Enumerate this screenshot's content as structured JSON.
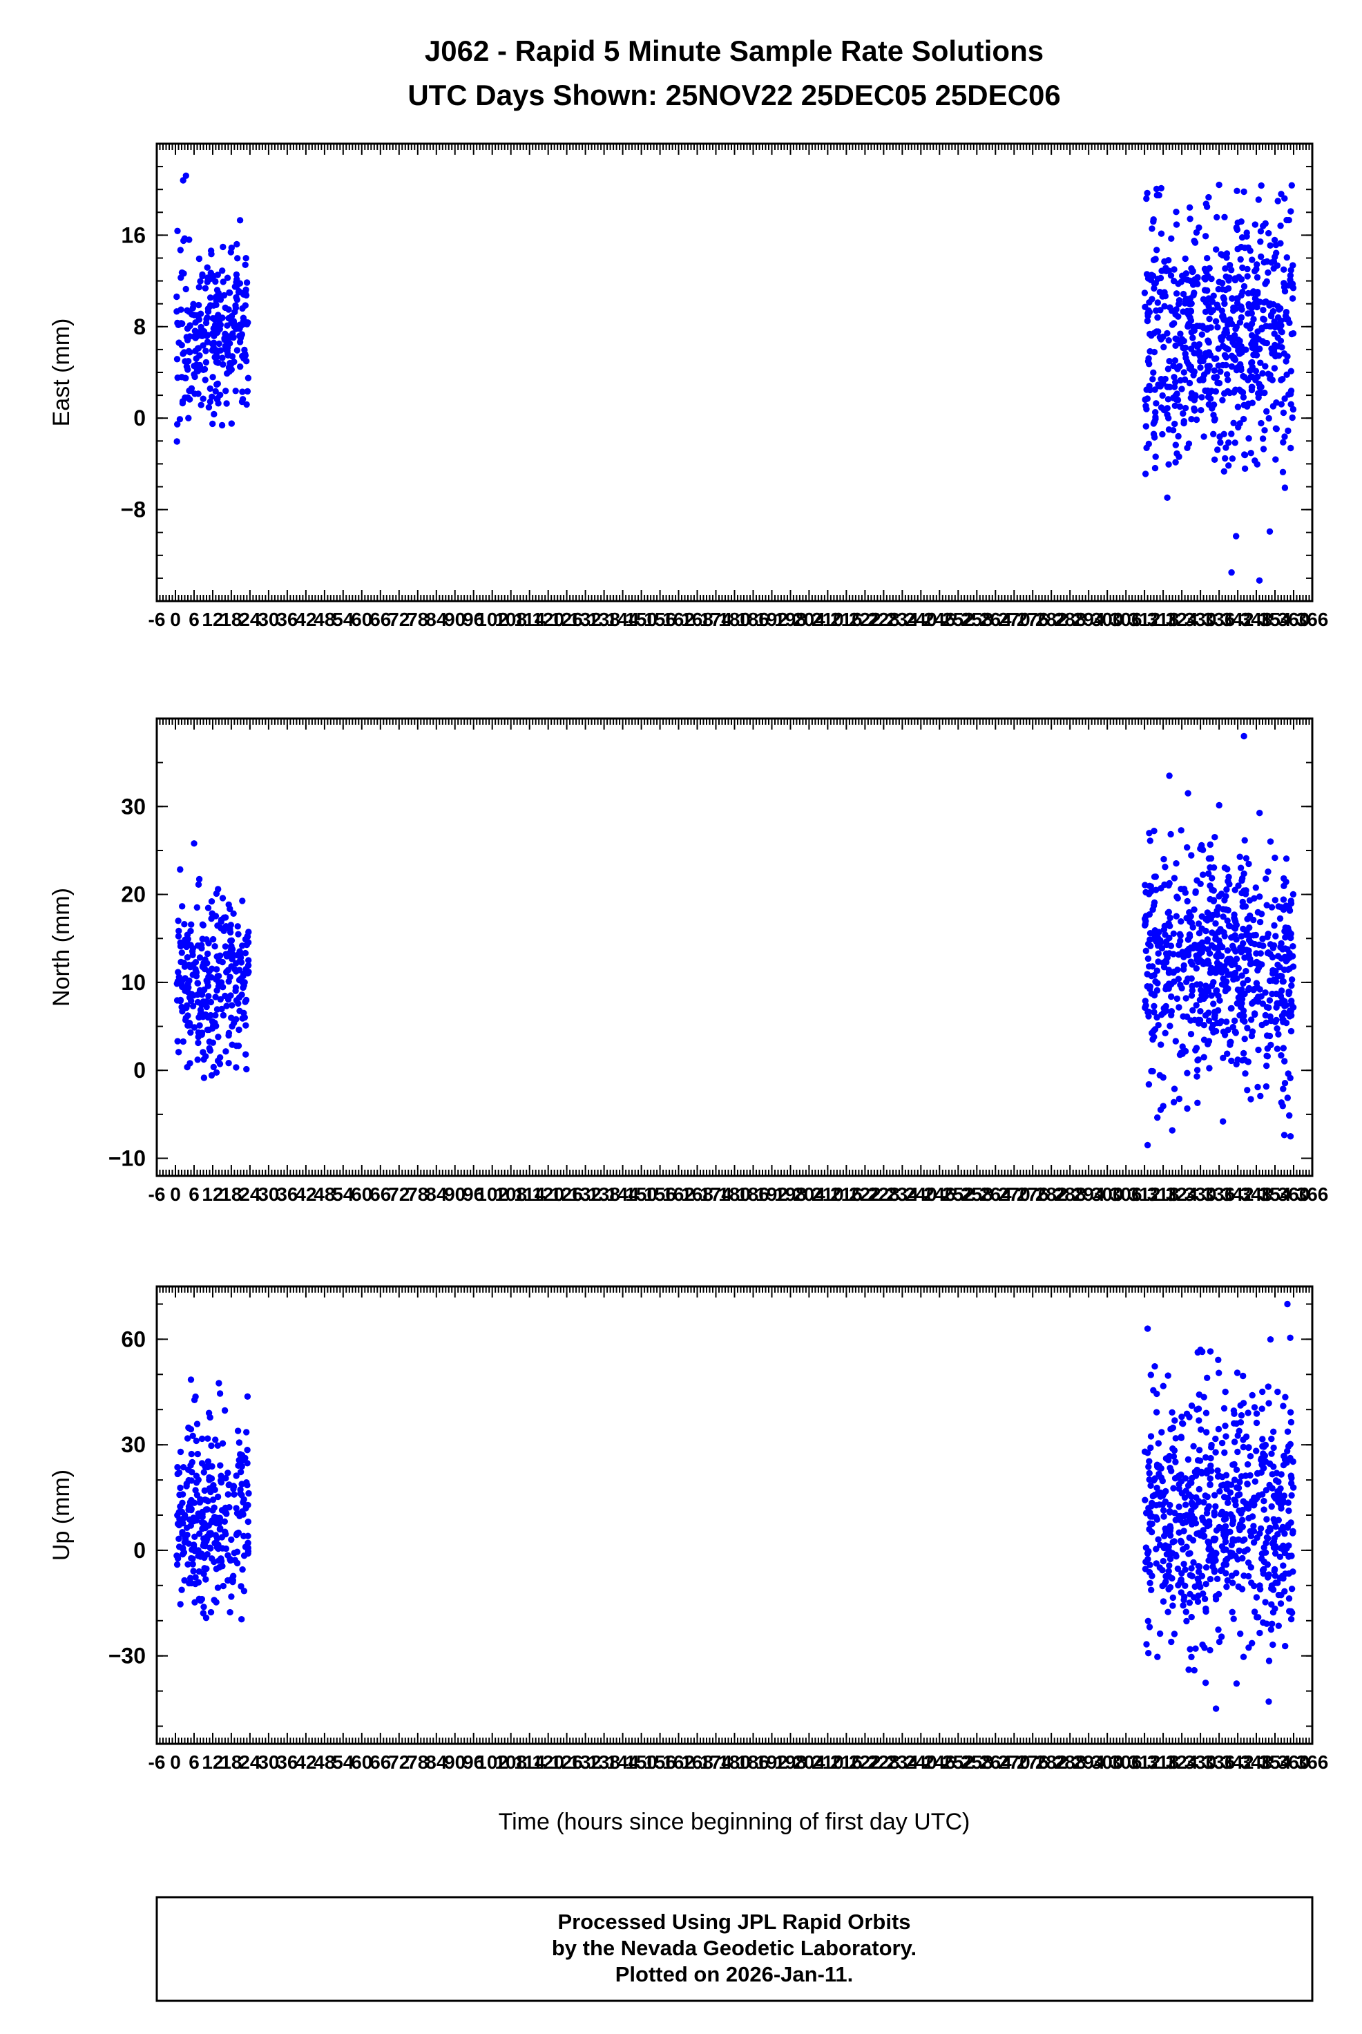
{
  "title_line1": "J062 - Rapid 5 Minute Sample Rate Solutions",
  "title_line2": "UTC Days Shown:  25NOV22 25DEC05 25DEC06",
  "xlabel": "Time (hours since beginning of first day UTC)",
  "footer": {
    "line1": "Processed Using JPL Rapid Orbits",
    "line2": "by the Nevada Geodetic Laboratory.",
    "line3": "Plotted on 2026-Jan-11."
  },
  "colors": {
    "points": "#0000ff",
    "axis": "#000000"
  },
  "chart_data": [
    {
      "type": "scatter",
      "ylabel": "East (mm)",
      "xlim": [
        -6,
        366
      ],
      "xtick_step": 6,
      "x_minor_step": 1,
      "ylim": [
        -16,
        24
      ],
      "yticks": [
        -8,
        0,
        8,
        16
      ],
      "y_minor_step": 2,
      "seed": 7,
      "marker_color": "#0000ff",
      "clusters": [
        {
          "x_range": [
            0.4,
            23.6
          ],
          "n": 290,
          "mean": 7.5,
          "sd": 3.8,
          "clip": [
            -6,
            20
          ]
        },
        {
          "x_range": [
            312,
            360
          ],
          "n": 680,
          "mean": 7.5,
          "sd": 5.5,
          "clip": [
            -14.5,
            20.5
          ]
        }
      ],
      "extra_points": [
        [
          2.5,
          20.8
        ],
        [
          3.4,
          21.2
        ],
        [
          336,
          20.4
        ],
        [
          344,
          19.8
        ],
        [
          349,
          -14.2
        ],
        [
          356,
          19.6
        ],
        [
          340,
          -13.5
        ]
      ]
    },
    {
      "type": "scatter",
      "ylabel": "North (mm)",
      "xlim": [
        -6,
        366
      ],
      "xtick_step": 6,
      "x_minor_step": 1,
      "ylim": [
        -12,
        40
      ],
      "yticks": [
        -10,
        0,
        10,
        20,
        30
      ],
      "y_minor_step": 5,
      "seed": 13,
      "marker_color": "#0000ff",
      "clusters": [
        {
          "x_range": [
            0.4,
            23.6
          ],
          "n": 290,
          "mean": 10,
          "sd": 5,
          "clip": [
            -7,
            26
          ]
        },
        {
          "x_range": [
            312,
            360
          ],
          "n": 680,
          "mean": 11.5,
          "sd": 6.5,
          "clip": [
            -9,
            34
          ]
        }
      ],
      "extra_points": [
        [
          344,
          38
        ],
        [
          320,
          33.5
        ],
        [
          326,
          31.5
        ],
        [
          6,
          25.8
        ],
        [
          359,
          -7.5
        ],
        [
          313,
          -8.5
        ]
      ]
    },
    {
      "type": "scatter",
      "ylabel": "Up (mm)",
      "xlim": [
        -6,
        366
      ],
      "xtick_step": 6,
      "x_minor_step": 1,
      "ylim": [
        -55,
        75
      ],
      "yticks": [
        -30,
        0,
        30,
        60
      ],
      "y_minor_step": 10,
      "seed": 29,
      "marker_color": "#0000ff",
      "clusters": [
        {
          "x_range": [
            0.4,
            23.6
          ],
          "n": 290,
          "mean": 10,
          "sd": 13,
          "clip": [
            -26,
            46
          ]
        },
        {
          "x_range": [
            312,
            360
          ],
          "n": 680,
          "mean": 8,
          "sd": 18,
          "clip": [
            -44,
            62
          ]
        }
      ],
      "extra_points": [
        [
          313,
          63
        ],
        [
          358,
          70
        ],
        [
          5,
          48.5
        ],
        [
          14,
          47.5
        ],
        [
          335,
          -45
        ],
        [
          352,
          -43
        ],
        [
          330,
          57
        ]
      ]
    }
  ]
}
